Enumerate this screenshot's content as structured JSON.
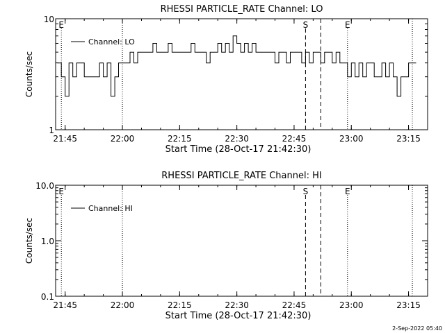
{
  "chart_data": [
    {
      "type": "line",
      "title": "RHESSI PARTICLE_RATE Channel: LO",
      "xlabel": "Start Time (28-Oct-17 21:42:30)",
      "ylabel": "Counts/sec",
      "y_scale": "log",
      "ylim": [
        1,
        10
      ],
      "y_ticks": [
        {
          "value": 1,
          "label": "1"
        },
        {
          "value": 10,
          "label": "10"
        }
      ],
      "xlim": [
        "21:42:30",
        "23:20:00"
      ],
      "x_ticks": [
        "21:45",
        "22:00",
        "22:15",
        "22:30",
        "22:45",
        "23:00",
        "23:15"
      ],
      "legend": {
        "position": "top-left",
        "entries": [
          "Channel: LO"
        ]
      },
      "markers": [
        {
          "time": "21:44",
          "label": "E",
          "style": "dotted"
        },
        {
          "time": "22:00",
          "label": "",
          "style": "dotted"
        },
        {
          "time": "22:48",
          "label": "S",
          "style": "dashed"
        },
        {
          "time": "22:52",
          "label": "",
          "style": "dashed"
        },
        {
          "time": "22:59",
          "label": "E",
          "style": "dotted"
        },
        {
          "time": "23:16",
          "label": "",
          "style": "dotted"
        }
      ],
      "series": [
        {
          "name": "Channel: LO",
          "x": [
            "21:43",
            "21:44",
            "21:45",
            "21:46",
            "21:47",
            "21:48",
            "21:49",
            "21:50",
            "21:51",
            "21:52",
            "21:53",
            "21:54",
            "21:55",
            "21:56",
            "21:57",
            "21:58",
            "21:59",
            "22:00",
            "22:01",
            "22:02",
            "22:03",
            "22:04",
            "22:05",
            "22:06",
            "22:07",
            "22:08",
            "22:09",
            "22:10",
            "22:11",
            "22:12",
            "22:13",
            "22:14",
            "22:15",
            "22:16",
            "22:17",
            "22:18",
            "22:19",
            "22:20",
            "22:21",
            "22:22",
            "22:23",
            "22:24",
            "22:25",
            "22:26",
            "22:27",
            "22:28",
            "22:29",
            "22:30",
            "22:31",
            "22:32",
            "22:33",
            "22:34",
            "22:35",
            "22:36",
            "22:37",
            "22:38",
            "22:39",
            "22:40",
            "22:41",
            "22:42",
            "22:43",
            "22:44",
            "22:45",
            "22:46",
            "22:47",
            "22:48",
            "22:49",
            "22:50",
            "22:51",
            "22:52",
            "22:53",
            "22:54",
            "22:55",
            "22:56",
            "22:57",
            "22:58",
            "22:59",
            "23:00",
            "23:01",
            "23:02",
            "23:03",
            "23:04",
            "23:05",
            "23:06",
            "23:07",
            "23:08",
            "23:09",
            "23:10",
            "23:11",
            "23:12",
            "23:13",
            "23:14",
            "23:15",
            "23:16"
          ],
          "values": [
            4,
            3,
            2,
            4,
            3,
            4,
            4,
            3,
            3,
            3,
            3,
            4,
            3,
            4,
            2,
            3,
            4,
            4,
            4,
            5,
            4,
            5,
            5,
            5,
            5,
            6,
            5,
            5,
            5,
            6,
            5,
            5,
            5,
            5,
            5,
            6,
            5,
            5,
            5,
            4,
            5,
            5,
            6,
            5,
            6,
            5,
            7,
            6,
            5,
            6,
            5,
            6,
            5,
            5,
            5,
            5,
            5,
            4,
            5,
            5,
            4,
            5,
            5,
            5,
            4,
            5,
            4,
            5,
            5,
            4,
            5,
            5,
            4,
            5,
            4,
            4,
            3,
            4,
            3,
            4,
            3,
            4,
            4,
            3,
            3,
            4,
            3,
            4,
            3,
            2,
            3,
            3,
            4,
            4
          ]
        }
      ]
    },
    {
      "type": "line",
      "title": "RHESSI PARTICLE_RATE Channel: HI",
      "xlabel": "Start Time (28-Oct-17 21:42:30)",
      "ylabel": "Counts/sec",
      "y_scale": "log",
      "ylim": [
        0.1,
        10
      ],
      "y_ticks": [
        {
          "value": 0.1,
          "label": "0.1"
        },
        {
          "value": 1,
          "label": "1.0"
        },
        {
          "value": 10,
          "label": "10.0"
        }
      ],
      "xlim": [
        "21:42:30",
        "23:20:00"
      ],
      "x_ticks": [
        "21:45",
        "22:00",
        "22:15",
        "22:30",
        "22:45",
        "23:00",
        "23:15"
      ],
      "legend": {
        "position": "top-left",
        "entries": [
          "Channel: HI"
        ]
      },
      "markers": [
        {
          "time": "21:44",
          "label": "E",
          "style": "dotted"
        },
        {
          "time": "22:00",
          "label": "",
          "style": "dotted"
        },
        {
          "time": "22:48",
          "label": "S",
          "style": "dashed"
        },
        {
          "time": "22:52",
          "label": "",
          "style": "dashed"
        },
        {
          "time": "22:59",
          "label": "E",
          "style": "dotted"
        },
        {
          "time": "23:16",
          "label": "",
          "style": "dotted"
        }
      ],
      "series": [
        {
          "name": "Channel: HI",
          "x": [],
          "values": []
        }
      ]
    }
  ],
  "footer": {
    "timestamp": "2-Sep-2022 05:40"
  }
}
